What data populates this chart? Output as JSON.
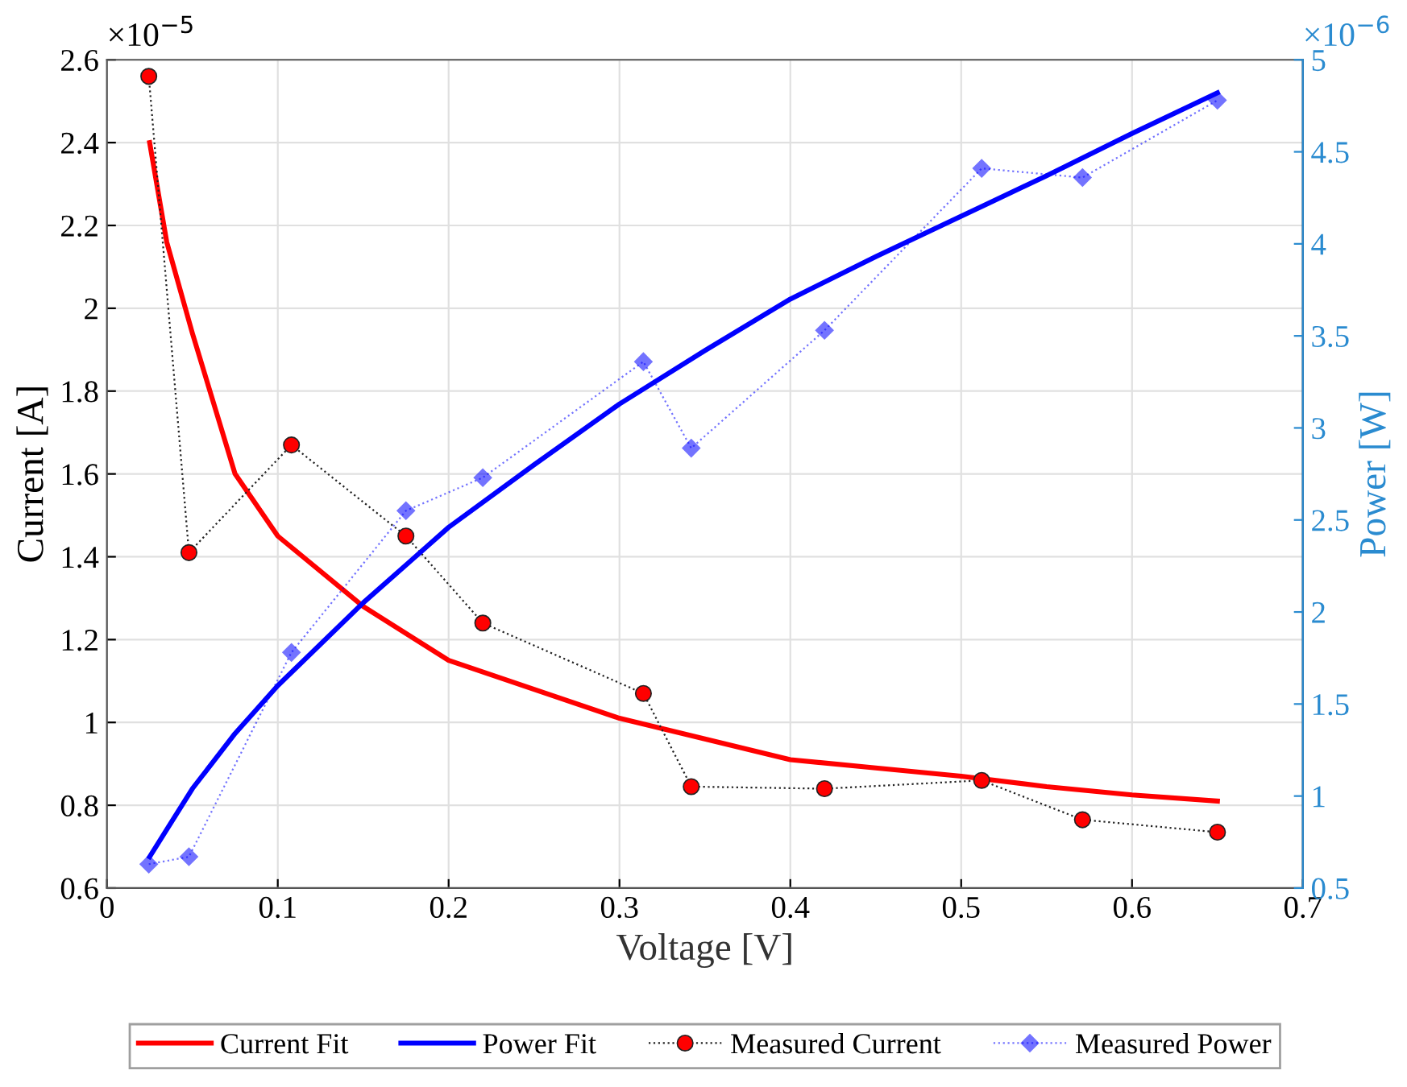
{
  "chart_data": {
    "type": "line",
    "xlabel": "Voltage [V]",
    "ylabel": "Current [A]",
    "y2label": "Power [W]",
    "annotations": [
      "×10$^{−5}$",
      "×10$^{−6}$"
    ],
    "xlim": [
      0,
      0.7
    ],
    "xticks": [
      0,
      0.1,
      0.2,
      0.3,
      0.4,
      0.5,
      0.6,
      0.7
    ],
    "ylim": [
      0.6,
      2.6
    ],
    "yticks": [
      0.6,
      0.8,
      1,
      1.2,
      1.4,
      1.6,
      1.8,
      2,
      2.2,
      2.4,
      2.6
    ],
    "y2lim": [
      0.5,
      5
    ],
    "y2ticks": [
      0.5,
      1,
      1.5,
      2,
      2.5,
      3,
      3.5,
      4,
      4.5,
      5
    ],
    "grid": true,
    "legend": "bottom",
    "series": [
      {
        "name": "Current Fit",
        "color": "#ff0000",
        "marker": "none",
        "line_style": "solid",
        "x": [
          0.025,
          0.035,
          0.05,
          0.075,
          0.1,
          0.15,
          0.2,
          0.25,
          0.3,
          0.35,
          0.4,
          0.45,
          0.5,
          0.55,
          0.6,
          0.65
        ],
        "values": [
          2.4,
          2.16,
          1.94,
          1.6,
          1.45,
          1.28,
          1.15,
          1.08,
          1.01,
          0.96,
          0.91,
          0.89,
          0.87,
          0.845,
          0.825,
          0.81
        ]
      },
      {
        "name": "Power Fit",
        "axis": "y2",
        "color": "#0000ff",
        "marker": "none",
        "line_style": "solid",
        "x": [
          0.025,
          0.05,
          0.075,
          0.1,
          0.15,
          0.2,
          0.25,
          0.3,
          0.35,
          0.4,
          0.45,
          0.5,
          0.55,
          0.6,
          0.65
        ],
        "values": [
          0.67,
          1.04,
          1.34,
          1.6,
          2.05,
          2.46,
          2.8,
          3.13,
          3.42,
          3.7,
          3.93,
          4.15,
          4.37,
          4.6,
          4.82
        ]
      },
      {
        "name": "Measured Current",
        "color": "#ff0000",
        "marker": "circle",
        "line_style": "dotted",
        "x": [
          0.0245,
          0.048,
          0.108,
          0.175,
          0.22,
          0.314,
          0.342,
          0.42,
          0.512,
          0.571,
          0.65
        ],
        "values": [
          2.56,
          1.41,
          1.67,
          1.45,
          1.24,
          1.07,
          0.845,
          0.84,
          0.86,
          0.765,
          0.735
        ]
      },
      {
        "name": "Measured Power",
        "axis": "y2",
        "color": "#0000ff",
        "marker": "diamond",
        "line_style": "dotted",
        "x": [
          0.0245,
          0.048,
          0.108,
          0.175,
          0.22,
          0.314,
          0.342,
          0.42,
          0.512,
          0.571,
          0.65
        ],
        "values": [
          0.63,
          0.67,
          1.78,
          2.55,
          2.73,
          3.36,
          2.89,
          3.53,
          4.41,
          4.36,
          4.78
        ]
      }
    ]
  }
}
